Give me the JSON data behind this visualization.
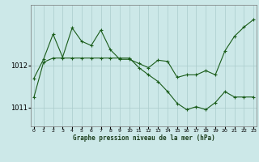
{
  "title": "Graphe pression niveau de la mer (hPa)",
  "bg_color": "#cce8e8",
  "grid_color": "#aacccc",
  "line_color": "#1a5c1a",
  "marker_color": "#1a5c1a",
  "x_ticks": [
    0,
    1,
    2,
    3,
    4,
    5,
    6,
    7,
    8,
    9,
    10,
    11,
    12,
    13,
    14,
    15,
    16,
    17,
    18,
    19,
    20,
    21,
    22,
    23
  ],
  "xlim": [
    -0.3,
    23.3
  ],
  "ylim": [
    1010.55,
    1013.45
  ],
  "y_ticks": [
    1011,
    1012
  ],
  "series1_x": [
    0,
    1,
    2,
    3,
    4,
    5,
    6,
    7,
    8,
    9,
    10,
    11,
    12,
    13,
    14,
    15,
    16,
    17,
    18,
    19,
    20,
    21,
    22,
    23
  ],
  "series1_y": [
    1011.7,
    1012.15,
    1012.75,
    1012.2,
    1012.9,
    1012.58,
    1012.48,
    1012.85,
    1012.38,
    1012.15,
    1012.15,
    1012.05,
    1011.95,
    1012.13,
    1012.1,
    1011.72,
    1011.78,
    1011.78,
    1011.88,
    1011.78,
    1012.35,
    1012.7,
    1012.92,
    1013.1
  ],
  "series2_x": [
    0,
    1,
    2,
    3,
    4,
    5,
    6,
    7,
    8,
    9,
    10,
    11,
    12,
    13,
    14,
    15,
    16,
    17,
    18,
    19,
    20,
    21,
    22,
    23
  ],
  "series2_y": [
    1011.25,
    1012.08,
    1012.18,
    1012.18,
    1012.18,
    1012.18,
    1012.18,
    1012.18,
    1012.18,
    1012.18,
    1012.18,
    1011.95,
    1011.78,
    1011.62,
    1011.38,
    1011.1,
    1010.95,
    1011.02,
    1010.95,
    1011.12,
    1011.38,
    1011.25,
    1011.25,
    1011.25
  ]
}
